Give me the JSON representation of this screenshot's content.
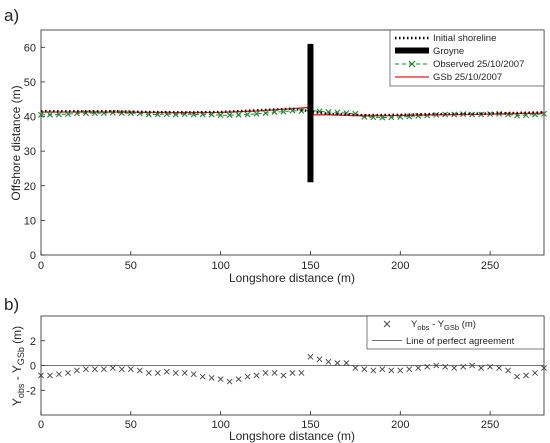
{
  "panels": {
    "a": {
      "label": "a)",
      "chart_data": {
        "type": "line",
        "xlabel": "Longshore distance (m)",
        "ylabel": "Offshore distance (m)",
        "xlim": [
          0,
          280
        ],
        "ylim": [
          0,
          65
        ],
        "xticks": [
          0,
          50,
          100,
          150,
          200,
          250
        ],
        "yticks": [
          0,
          10,
          20,
          30,
          40,
          50,
          60
        ],
        "legend_position": "top-right",
        "grid": false,
        "series": [
          {
            "name": "Initial shoreline",
            "style": "dotted",
            "color": "#000000",
            "x": [
              0,
              20,
              40,
              60,
              80,
              100,
              120,
              140,
              150,
              160,
              180,
              200,
              220,
              240,
              260,
              280
            ],
            "y": [
              41.5,
              41.5,
              41.5,
              41.3,
              41.2,
              41.3,
              41.8,
              42.3,
              41.5,
              40.8,
              40.4,
              40.5,
              40.7,
              40.8,
              41.0,
              41.2
            ]
          },
          {
            "name": "Groyne",
            "style": "bar",
            "color": "#000000",
            "x": [
              150,
              150
            ],
            "y": [
              21,
              61
            ]
          },
          {
            "name": "Observed 25/10/2007",
            "style": "dashed-x",
            "color": "#1a8a2e",
            "x": [
              0,
              5,
              10,
              15,
              20,
              25,
              30,
              35,
              40,
              45,
              50,
              55,
              60,
              65,
              70,
              75,
              80,
              85,
              90,
              95,
              100,
              105,
              110,
              115,
              120,
              125,
              130,
              135,
              140,
              145,
              150,
              155,
              160,
              165,
              170,
              175,
              180,
              185,
              190,
              195,
              200,
              205,
              210,
              215,
              220,
              225,
              230,
              235,
              240,
              245,
              250,
              255,
              260,
              265,
              270,
              275,
              280
            ],
            "y": [
              40.5,
              40.5,
              40.6,
              40.7,
              40.9,
              41.0,
              41.0,
              41.0,
              41.1,
              41.0,
              41.0,
              40.9,
              40.6,
              40.6,
              40.7,
              40.6,
              40.7,
              40.6,
              40.6,
              40.6,
              40.4,
              40.4,
              40.5,
              40.6,
              40.8,
              41.0,
              41.3,
              41.4,
              41.7,
              41.6,
              41.7,
              41.5,
              41.3,
              41.2,
              41.0,
              40.8,
              39.9,
              39.8,
              39.7,
              39.8,
              39.9,
              40.0,
              40.2,
              40.3,
              40.5,
              40.6,
              40.6,
              40.7,
              40.6,
              40.6,
              40.7,
              40.8,
              40.6,
              40.3,
              40.4,
              40.6,
              40.8
            ]
          },
          {
            "name": "GSb 25/10/2007",
            "style": "solid",
            "color": "#e01c24",
            "x": [
              0,
              20,
              40,
              60,
              80,
              100,
              120,
              140,
              148,
              152,
              160,
              180,
              200,
              220,
              240,
              260,
              280
            ],
            "y": [
              41.3,
              41.3,
              41.3,
              41.2,
              41.1,
              41.2,
              41.6,
              42.3,
              42.6,
              40.5,
              40.5,
              40.2,
              40.3,
              40.5,
              40.6,
              40.8,
              41.0
            ]
          }
        ]
      }
    },
    "b": {
      "label": "b)",
      "chart_data": {
        "type": "scatter",
        "xlabel": "Longshore distance (m)",
        "ylabel_parts": {
          "pre": "Y",
          "sub1": "obs",
          "mid": " - Y",
          "sub2": "GSb",
          "post": " (m)"
        },
        "xlim": [
          0,
          280
        ],
        "ylim": [
          -4,
          4
        ],
        "xticks": [
          0,
          50,
          100,
          150,
          200,
          250
        ],
        "yticks": [
          -2,
          0,
          2
        ],
        "legend_position": "top-right",
        "grid": false,
        "legend": [
          {
            "marker": "x",
            "parts": {
              "pre": "Y",
              "sub1": "obs",
              "mid": " - Y",
              "sub2": "GSb",
              "post": " (m)"
            }
          },
          {
            "marker": "line",
            "label": "Line of perfect agreement"
          }
        ],
        "reference_line_y": 0,
        "points": {
          "x": [
            0,
            5,
            10,
            15,
            20,
            25,
            30,
            35,
            40,
            45,
            50,
            55,
            60,
            65,
            70,
            75,
            80,
            85,
            90,
            95,
            100,
            105,
            110,
            115,
            120,
            125,
            130,
            135,
            140,
            145,
            150,
            155,
            160,
            165,
            170,
            175,
            180,
            185,
            190,
            195,
            200,
            205,
            210,
            215,
            220,
            225,
            230,
            235,
            240,
            245,
            250,
            255,
            260,
            265,
            270,
            275,
            280
          ],
          "y": [
            -0.8,
            -0.8,
            -0.7,
            -0.6,
            -0.4,
            -0.3,
            -0.3,
            -0.3,
            -0.2,
            -0.3,
            -0.3,
            -0.4,
            -0.6,
            -0.6,
            -0.5,
            -0.6,
            -0.6,
            -0.7,
            -0.9,
            -1.0,
            -1.1,
            -1.3,
            -1.1,
            -0.9,
            -0.8,
            -0.6,
            -0.6,
            -0.8,
            -0.6,
            -0.6,
            0.7,
            0.5,
            0.3,
            0.2,
            0.2,
            -0.2,
            -0.3,
            -0.4,
            -0.3,
            -0.4,
            -0.4,
            -0.3,
            -0.2,
            -0.1,
            0.0,
            -0.1,
            -0.2,
            -0.1,
            0.0,
            -0.2,
            -0.1,
            -0.2,
            -0.4,
            -0.9,
            -0.8,
            -0.6,
            -0.2
          ]
        }
      }
    }
  }
}
